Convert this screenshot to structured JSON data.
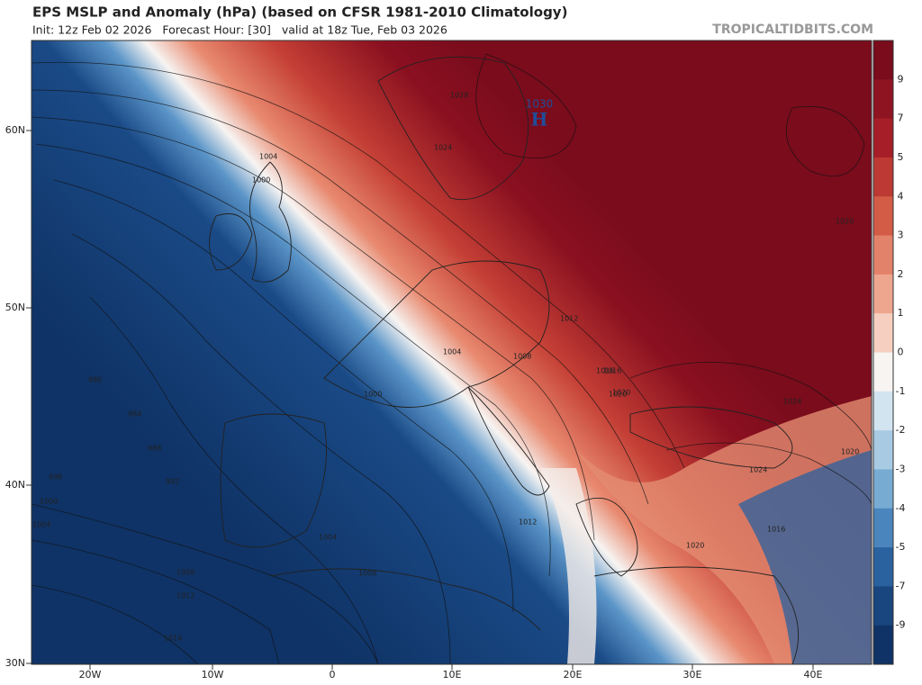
{
  "header": {
    "title": "EPS MSLP and Anomaly (hPa) (based on CFSR 1981-2010 Climatology)",
    "subtitle": "Init: 12z Feb 02 2026   Forecast Hour: [30]   valid at 18z Tue, Feb 03 2026",
    "credit": "TROPICALTIDBITS.COM"
  },
  "map": {
    "lat_labels": [
      "60N",
      "50N",
      "40N",
      "30N"
    ],
    "lon_labels": [
      "20W",
      "10W",
      "0",
      "10E",
      "20E",
      "30E",
      "40E"
    ],
    "high": {
      "pressure": "1030",
      "symbol": "H"
    },
    "contour_labels": [
      "1028",
      "1024",
      "1020",
      "1020",
      "1024",
      "1024",
      "1020",
      "1016",
      "1020",
      "1016",
      "1012",
      "1008",
      "1004",
      "1000",
      "1004",
      "1000",
      "996",
      "992",
      "988",
      "984",
      "980",
      "1004",
      "1008",
      "1012",
      "1016",
      "1000",
      "1004",
      "1008",
      "1012",
      "1016",
      "1020"
    ]
  },
  "colorbar": {
    "labels": [
      9,
      7,
      5,
      4,
      3,
      2,
      1,
      0,
      -1,
      -2,
      -3,
      -4,
      -5,
      -7,
      -9
    ],
    "colors": [
      "#7a0c1c",
      "#8f1422",
      "#a51e28",
      "#bd3a34",
      "#d35c47",
      "#e3826a",
      "#eea68f",
      "#f6cfc0",
      "#f7f4f2",
      "#d2e4f0",
      "#a8cbe3",
      "#78abd2",
      "#4a86bd",
      "#2a629f",
      "#1a467f",
      "#0f3366"
    ]
  }
}
